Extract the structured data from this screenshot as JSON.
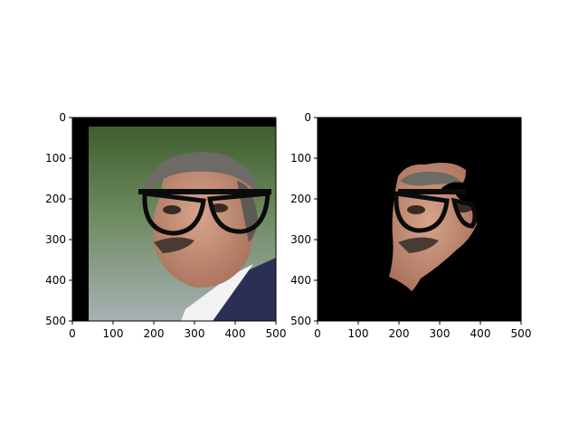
{
  "chart_data": [
    {
      "type": "image",
      "content": "photograph of a man's face with overlaid black eyeglasses",
      "xlim": [
        0,
        500
      ],
      "ylim": [
        500,
        0
      ],
      "x_ticks": [
        0,
        100,
        200,
        300,
        400,
        500
      ],
      "y_ticks": [
        0,
        100,
        200,
        300,
        400,
        500
      ],
      "x_tick_labels": [
        "0",
        "100",
        "200",
        "300",
        "400",
        "500"
      ],
      "y_tick_labels": [
        "0",
        "100",
        "200",
        "300",
        "400",
        "500"
      ]
    },
    {
      "type": "image",
      "content": "segmented face region with eyeglasses on a black background",
      "xlim": [
        0,
        500
      ],
      "ylim": [
        500,
        0
      ],
      "x_ticks": [
        0,
        100,
        200,
        300,
        400,
        500
      ],
      "y_ticks": [
        0,
        100,
        200,
        300,
        400,
        500
      ],
      "x_tick_labels": [
        "0",
        "100",
        "200",
        "300",
        "400",
        "500"
      ],
      "y_tick_labels": [
        "0",
        "100",
        "200",
        "300",
        "400",
        "500"
      ]
    }
  ],
  "colors": {
    "image_border": "#000000",
    "background_green": "#52723f",
    "background_gray": "#8c9a8a",
    "skin": "#c99a83",
    "hair": "#6e6a66",
    "suit": "#2b2f55",
    "shirt": "#f2f2f2",
    "glasses": "#0b0b0b"
  }
}
